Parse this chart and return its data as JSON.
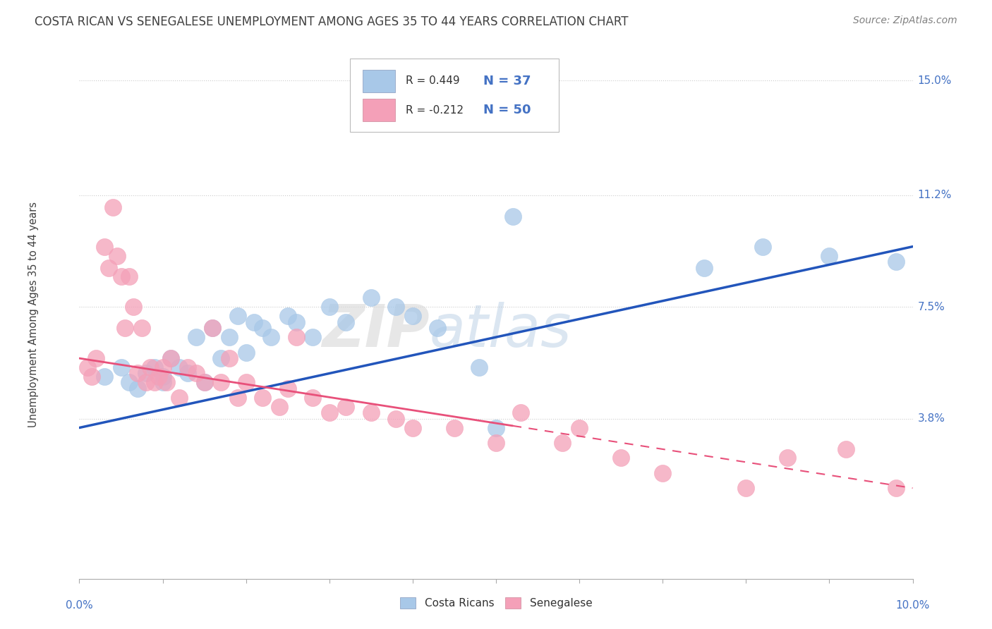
{
  "title": "COSTA RICAN VS SENEGALESE UNEMPLOYMENT AMONG AGES 35 TO 44 YEARS CORRELATION CHART",
  "source": "Source: ZipAtlas.com",
  "xmin": 0.0,
  "xmax": 10.0,
  "ymin": -1.5,
  "ymax": 16.0,
  "watermark_zip": "ZIP",
  "watermark_atlas": "atlas",
  "legend_r1": "R = 0.449",
  "legend_n1": "N = 37",
  "legend_r2": "R = -0.212",
  "legend_n2": "N = 50",
  "costa_rican_color": "#a8c8e8",
  "senegalese_color": "#f4a0b8",
  "costa_rican_line_color": "#2255bb",
  "senegalese_line_color": "#e8507a",
  "title_color": "#404040",
  "source_color": "#808080",
  "axis_label_color": "#4472c4",
  "yticks": [
    3.8,
    7.5,
    11.2,
    15.0
  ],
  "ytick_labels": [
    "3.8%",
    "7.5%",
    "11.2%",
    "15.0%"
  ],
  "costa_rican_x": [
    0.3,
    0.5,
    0.6,
    0.7,
    0.8,
    0.9,
    1.0,
    1.0,
    1.1,
    1.2,
    1.3,
    1.4,
    1.5,
    1.6,
    1.7,
    1.8,
    1.9,
    2.0,
    2.1,
    2.2,
    2.3,
    2.5,
    2.6,
    2.8,
    3.0,
    3.2,
    3.5,
    3.8,
    4.0,
    4.3,
    4.8,
    5.0,
    5.2,
    7.5,
    8.2,
    9.0,
    9.8
  ],
  "costa_rican_y": [
    5.2,
    5.5,
    5.0,
    4.8,
    5.3,
    5.5,
    5.0,
    5.2,
    5.8,
    5.5,
    5.3,
    6.5,
    5.0,
    6.8,
    5.8,
    6.5,
    7.2,
    6.0,
    7.0,
    6.8,
    6.5,
    7.2,
    7.0,
    6.5,
    7.5,
    7.0,
    7.8,
    7.5,
    7.2,
    6.8,
    5.5,
    3.5,
    10.5,
    8.8,
    9.5,
    9.2,
    9.0
  ],
  "senegalese_x": [
    0.1,
    0.15,
    0.2,
    0.3,
    0.35,
    0.4,
    0.45,
    0.5,
    0.55,
    0.6,
    0.65,
    0.7,
    0.75,
    0.8,
    0.85,
    0.9,
    0.95,
    1.0,
    1.05,
    1.1,
    1.2,
    1.3,
    1.4,
    1.5,
    1.6,
    1.7,
    1.8,
    1.9,
    2.0,
    2.2,
    2.4,
    2.5,
    2.6,
    2.8,
    3.0,
    3.2,
    3.5,
    3.8,
    4.0,
    4.5,
    5.0,
    5.3,
    5.8,
    6.0,
    6.5,
    7.0,
    8.0,
    8.5,
    9.2,
    9.8
  ],
  "senegalese_y": [
    5.5,
    5.2,
    5.8,
    9.5,
    8.8,
    10.8,
    9.2,
    8.5,
    6.8,
    8.5,
    7.5,
    5.3,
    6.8,
    5.0,
    5.5,
    5.0,
    5.2,
    5.5,
    5.0,
    5.8,
    4.5,
    5.5,
    5.3,
    5.0,
    6.8,
    5.0,
    5.8,
    4.5,
    5.0,
    4.5,
    4.2,
    4.8,
    6.5,
    4.5,
    4.0,
    4.2,
    4.0,
    3.8,
    3.5,
    3.5,
    3.0,
    4.0,
    3.0,
    3.5,
    2.5,
    2.0,
    1.5,
    2.5,
    2.8,
    1.5
  ],
  "cr_trendline_x0": 0.0,
  "cr_trendline_y0": 3.5,
  "cr_trendline_x1": 10.0,
  "cr_trendline_y1": 9.5,
  "sn_trendline_x0": 0.0,
  "sn_trendline_y0": 5.8,
  "sn_trendline_x1": 10.0,
  "sn_trendline_y1": 1.5,
  "sn_solid_end_x": 5.2
}
